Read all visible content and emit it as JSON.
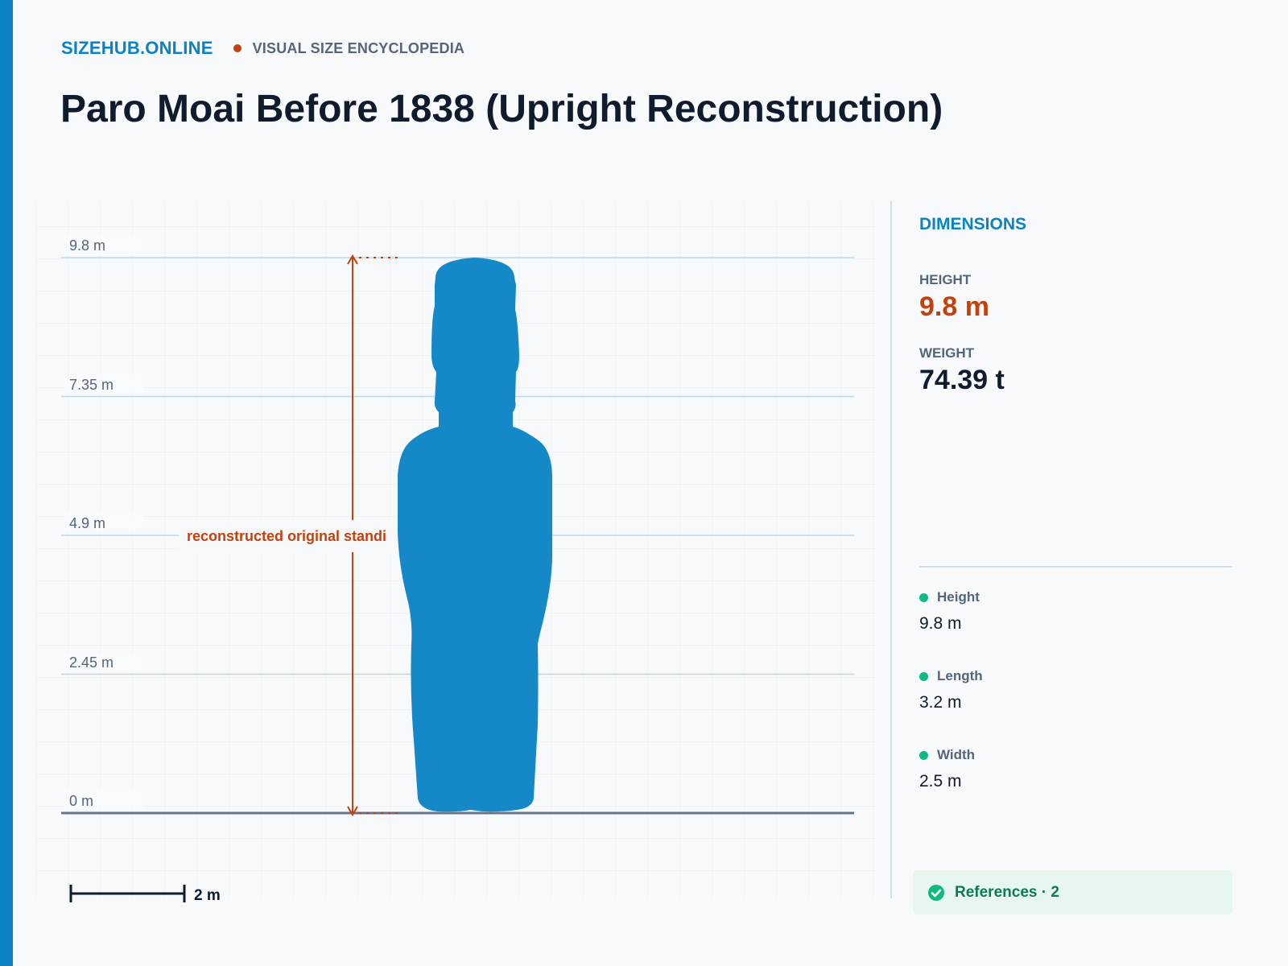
{
  "header": {
    "brand": "SIZEHUB.ONLINE",
    "subtitle": "VISUAL SIZE ENCYCLOPEDIA",
    "title": "Paro Moai Before 1838 (Upright Reconstruction)"
  },
  "diagram": {
    "axis_labels": [
      "9.8 m",
      "7.35 m",
      "4.9 m",
      "2.45 m",
      "0 m"
    ],
    "axis_values": [
      9.8,
      7.35,
      4.9,
      2.45,
      0
    ],
    "annotation": "reconstructed original standi",
    "scale_bar_label": "2 m",
    "scale_bar_meters": 2,
    "object_height_m": 9.8,
    "colors": {
      "silhouette": "#1589c8",
      "accent": "#c2410c",
      "grid": "#e6edf3",
      "gridline": "#bcd9ea",
      "ground": "#64748b"
    }
  },
  "panel": {
    "heading": "DIMENSIONS",
    "stats": [
      {
        "label": "HEIGHT",
        "value": "9.8 m",
        "color": "#c2410c"
      },
      {
        "label": "WEIGHT",
        "value": "74.39 t",
        "color": "#101b2e"
      }
    ],
    "dimensions": [
      {
        "label": "Height",
        "value": "9.8 m"
      },
      {
        "label": "Length",
        "value": "3.2 m"
      },
      {
        "label": "Width",
        "value": "2.5 m"
      }
    ],
    "references": "References · 2",
    "references_icon": "check-circle-icon"
  }
}
